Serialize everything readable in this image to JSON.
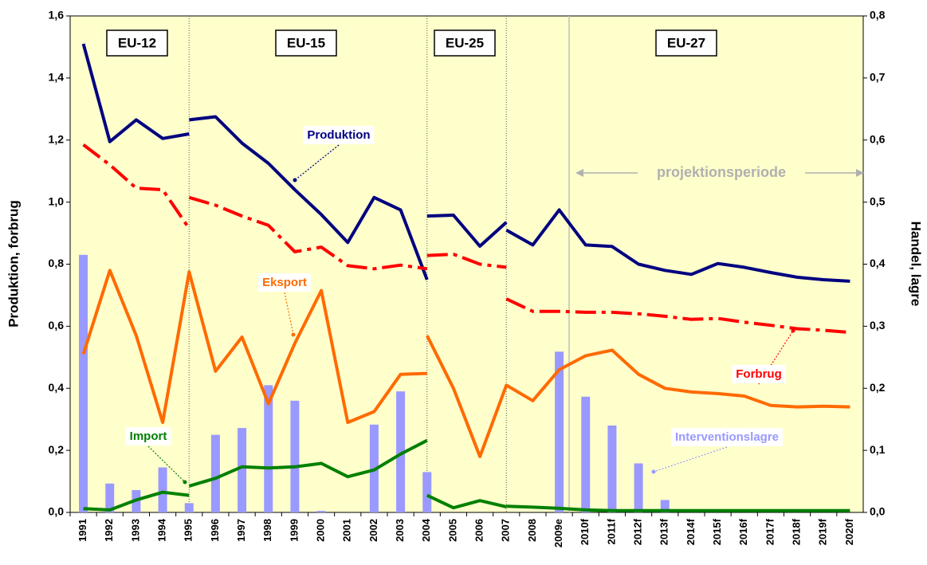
{
  "chart_data": {
    "type": "line",
    "ylabel": "Produktion, forbrug",
    "y2label": "Handel, lagre",
    "eras": [
      "EU-12",
      "EU-15",
      "EU-25",
      "EU-27"
    ],
    "projection_label": "projektionsperiode",
    "categories": [
      "1991",
      "1992",
      "1993",
      "1994",
      "1995",
      "1996",
      "1997",
      "1998",
      "1999",
      "2000",
      "2001",
      "2002",
      "2003",
      "2004",
      "2005",
      "2006",
      "2007",
      "2008",
      "2009e",
      "2010f",
      "2011f",
      "2012f",
      "2013f",
      "2014f",
      "2015f",
      "2016f",
      "2017f",
      "2018f",
      "2019f",
      "2020f"
    ],
    "ylim": [
      0,
      1.6
    ],
    "yticks": [
      {
        "value": 0,
        "label": "0,0"
      },
      {
        "value": 0.2,
        "label": "0,2"
      },
      {
        "value": 0.4,
        "label": "0,4"
      },
      {
        "value": 0.6,
        "label": "0,6"
      },
      {
        "value": 0.8,
        "label": "0,8"
      },
      {
        "value": 1.0,
        "label": "1,0"
      },
      {
        "value": 1.2,
        "label": "1,2"
      },
      {
        "value": 1.4,
        "label": "1,4"
      },
      {
        "value": 1.6,
        "label": "1,6"
      }
    ],
    "y2lim": [
      0,
      0.8
    ],
    "y2ticks": [
      {
        "value": 0,
        "label": "0,0"
      },
      {
        "value": 0.1,
        "label": "0,1"
      },
      {
        "value": 0.2,
        "label": "0,2"
      },
      {
        "value": 0.3,
        "label": "0,3"
      },
      {
        "value": 0.4,
        "label": "0,4"
      },
      {
        "value": 0.5,
        "label": "0,5"
      },
      {
        "value": 0.6,
        "label": "0,6"
      },
      {
        "value": 0.7,
        "label": "0,7"
      },
      {
        "value": 0.8,
        "label": "0,8"
      }
    ],
    "series": [
      {
        "name": "Interventionslagre",
        "type": "bar",
        "axis": "y2",
        "color": "#9999ff",
        "values": [
          0.415,
          0.0465,
          0.036,
          0.0725,
          0.015,
          0.125,
          0.136,
          0.205,
          0.18,
          0.0025,
          0,
          0.1415,
          0.195,
          0.065,
          0,
          0,
          0,
          0,
          0.259,
          0.1865,
          0.14,
          0.079,
          0.02,
          0,
          0,
          0,
          0,
          0,
          0,
          0
        ]
      },
      {
        "type": "line",
        "axis": "y",
        "color": "#000080",
        "style": "solid",
        "values": [
          1.51,
          1.195,
          1.265,
          1.205,
          1.22,
          null,
          null,
          null,
          null,
          null,
          null,
          null,
          null,
          null,
          null,
          null,
          null,
          null,
          null,
          null,
          null,
          null,
          null,
          null,
          null,
          null,
          null,
          null,
          null,
          null
        ]
      },
      {
        "name": "Produktion",
        "type": "line",
        "axis": "y",
        "color": "#000080",
        "style": "solid",
        "values": [
          null,
          null,
          null,
          null,
          1.265,
          1.275,
          1.19,
          1.125,
          1.04,
          0.96,
          0.87,
          1.015,
          0.975,
          0.75,
          null,
          null,
          null,
          null,
          null,
          null,
          null,
          null,
          null,
          null,
          null,
          null,
          null,
          null,
          null,
          null
        ]
      },
      {
        "type": "line",
        "axis": "y",
        "color": "#000080",
        "style": "solid",
        "values": [
          null,
          null,
          null,
          null,
          null,
          null,
          null,
          null,
          null,
          null,
          null,
          null,
          null,
          0.955,
          0.958,
          0.858,
          0.935,
          null,
          null,
          null,
          null,
          null,
          null,
          null,
          null,
          null,
          null,
          null,
          null,
          null
        ]
      },
      {
        "type": "line",
        "axis": "y",
        "color": "#000080",
        "style": "solid",
        "values": [
          null,
          null,
          null,
          null,
          null,
          null,
          null,
          null,
          null,
          null,
          null,
          null,
          null,
          null,
          null,
          null,
          0.91,
          0.862,
          0.975,
          0.862,
          0.857,
          0.8,
          0.78,
          0.767,
          0.802,
          0.79,
          0.773,
          0.758,
          0.75,
          0.745
        ]
      },
      {
        "type": "line",
        "axis": "y",
        "color": "#ff0000",
        "style": "dashdot",
        "values": [
          1.185,
          1.12,
          1.045,
          1.04,
          0.915,
          null,
          null,
          null,
          null,
          null,
          null,
          null,
          null,
          null,
          null,
          null,
          null,
          null,
          null,
          null,
          null,
          null,
          null,
          null,
          null,
          null,
          null,
          null,
          null,
          null
        ]
      },
      {
        "type": "line",
        "axis": "y",
        "color": "#ff0000",
        "style": "dashdot",
        "values": [
          null,
          null,
          null,
          null,
          1.015,
          0.99,
          0.955,
          0.925,
          0.84,
          0.855,
          0.795,
          0.785,
          0.797,
          0.785,
          null,
          null,
          null,
          null,
          null,
          null,
          null,
          null,
          null,
          null,
          null,
          null,
          null,
          null,
          null,
          null
        ]
      },
      {
        "type": "line",
        "axis": "y",
        "color": "#ff0000",
        "style": "dashdot",
        "values": [
          null,
          null,
          null,
          null,
          null,
          null,
          null,
          null,
          null,
          null,
          null,
          null,
          null,
          0.828,
          0.832,
          0.8,
          0.79,
          null,
          null,
          null,
          null,
          null,
          null,
          null,
          null,
          null,
          null,
          null,
          null,
          null
        ]
      },
      {
        "name": "Forbrug",
        "type": "line",
        "axis": "y",
        "color": "#ff0000",
        "style": "dashdot",
        "values": [
          null,
          null,
          null,
          null,
          null,
          null,
          null,
          null,
          null,
          null,
          null,
          null,
          null,
          null,
          null,
          null,
          0.688,
          0.648,
          0.648,
          0.645,
          0.645,
          0.64,
          0.632,
          0.622,
          0.625,
          0.613,
          0.603,
          0.592,
          0.587,
          0.58
        ]
      },
      {
        "name": "Eksport",
        "type": "line",
        "axis": "y2",
        "color": "#ff6a00",
        "style": "solid",
        "values": [
          0.255,
          0.39,
          0.285,
          0.145,
          0.3875,
          0.2275,
          0.2825,
          0.175,
          0.2725,
          0.3575,
          0.145,
          0.1625,
          0.2225,
          0.224,
          null,
          null,
          null,
          null,
          null,
          null,
          null,
          null,
          null,
          null,
          null,
          null,
          null,
          null,
          null,
          null
        ]
      },
      {
        "type": "line",
        "axis": "y2",
        "color": "#ff6a00",
        "style": "solid",
        "values": [
          null,
          null,
          null,
          null,
          null,
          null,
          null,
          null,
          null,
          null,
          null,
          null,
          null,
          0.285,
          0.2,
          0.09,
          0.205,
          0.18,
          0.23,
          0.2525,
          0.2615,
          0.2225,
          0.2,
          0.194,
          0.1915,
          0.1875,
          0.1725,
          0.17,
          0.171,
          0.17
        ]
      },
      {
        "type": "line",
        "axis": "y2",
        "color": "#008000",
        "style": "solid",
        "values": [
          0.006,
          0.004,
          0.02,
          0.0325,
          0.0275,
          null,
          null,
          null,
          null,
          null,
          null,
          null,
          null,
          null,
          null,
          null,
          null,
          null,
          null,
          null,
          null,
          null,
          null,
          null,
          null,
          null,
          null,
          null,
          null,
          null
        ]
      },
      {
        "name": "Import",
        "type": "line",
        "axis": "y2",
        "color": "#008000",
        "style": "solid",
        "values": [
          null,
          null,
          null,
          null,
          0.0425,
          0.055,
          0.0735,
          0.0715,
          0.0735,
          0.079,
          0.0575,
          0.0685,
          0.094,
          0.116,
          null,
          null,
          null,
          null,
          null,
          null,
          null,
          null,
          null,
          null,
          null,
          null,
          null,
          null,
          null,
          null
        ]
      },
      {
        "type": "line",
        "axis": "y2",
        "color": "#008000",
        "style": "solid",
        "values": [
          null,
          null,
          null,
          null,
          null,
          null,
          null,
          null,
          null,
          null,
          null,
          null,
          null,
          0.0275,
          0.0075,
          0.019,
          0.009,
          null,
          null,
          null,
          null,
          null,
          null,
          null,
          null,
          null,
          null,
          null,
          null,
          null
        ]
      },
      {
        "type": "line",
        "axis": "y2",
        "color": "#008000",
        "style": "solid",
        "values": [
          null,
          null,
          null,
          null,
          null,
          null,
          null,
          null,
          null,
          null,
          null,
          null,
          null,
          null,
          null,
          null,
          0.01,
          0.0085,
          0.0065,
          0.004,
          0.003,
          0.003,
          0.003,
          0.003,
          0.003,
          0.003,
          0.003,
          0.003,
          0.003,
          0.003
        ]
      }
    ]
  }
}
